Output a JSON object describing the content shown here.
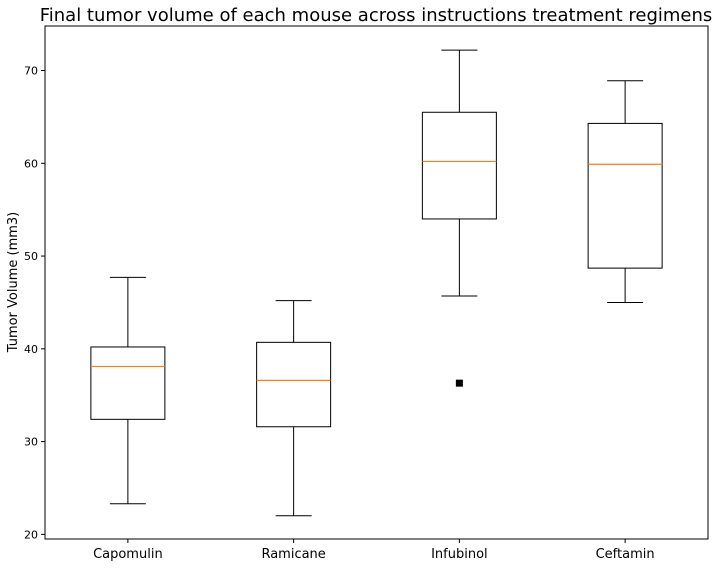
{
  "chart_data": {
    "type": "box",
    "title": "Final tumor volume of each mouse across instructions treatment regimens",
    "xlabel": "",
    "ylabel": "Tumor Volume (mm3)",
    "ylim": [
      19.5,
      74.8
    ],
    "yticks": [
      20,
      30,
      40,
      50,
      60,
      70
    ],
    "grid": false,
    "colors": {
      "box": "#000000",
      "median": "#ff7f0e",
      "outlier": "#000000"
    },
    "categories": [
      "Capomulin",
      "Ramicane",
      "Infubinol",
      "Ceftamin"
    ],
    "boxes": [
      {
        "category": "Capomulin",
        "whisker_low": 23.3,
        "q1": 32.4,
        "median": 38.1,
        "q3": 40.2,
        "whisker_high": 47.7,
        "outliers": []
      },
      {
        "category": "Ramicane",
        "whisker_low": 22.0,
        "q1": 31.6,
        "median": 36.6,
        "q3": 40.7,
        "whisker_high": 45.2,
        "outliers": []
      },
      {
        "category": "Infubinol",
        "whisker_low": 45.7,
        "q1": 54.0,
        "median": 60.2,
        "q3": 65.5,
        "whisker_high": 72.2,
        "outliers": [
          36.3
        ]
      },
      {
        "category": "Ceftamin",
        "whisker_low": 45.0,
        "q1": 48.7,
        "median": 59.9,
        "q3": 64.3,
        "whisker_high": 68.9,
        "outliers": []
      }
    ]
  }
}
